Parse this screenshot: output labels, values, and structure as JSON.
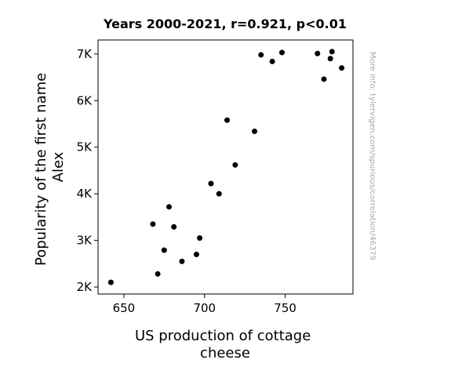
{
  "chart_data": {
    "type": "scatter",
    "title": "Years 2000-2021, r=0.921, p<0.01",
    "xlabel": [
      "US production of cottage",
      "cheese"
    ],
    "ylabel": [
      "Popularity of the first name",
      "Alex"
    ],
    "xlim": [
      634,
      792
    ],
    "ylim": [
      1850,
      7300
    ],
    "xticks": [
      650,
      700,
      750
    ],
    "xtick_labels": [
      "650",
      "700",
      "750"
    ],
    "yticks": [
      2000,
      3000,
      4000,
      5000,
      6000,
      7000
    ],
    "ytick_labels": [
      "2K",
      "3K",
      "4K",
      "5K",
      "6K",
      "7K"
    ],
    "grid": false,
    "marker_color": "#000000",
    "watermark": "More info: tylervigen.com/spurious/correlation/46379",
    "points": [
      {
        "x": 642,
        "y": 2100
      },
      {
        "x": 668,
        "y": 3350
      },
      {
        "x": 671,
        "y": 2280
      },
      {
        "x": 675,
        "y": 2790
      },
      {
        "x": 678,
        "y": 3720
      },
      {
        "x": 681,
        "y": 3290
      },
      {
        "x": 686,
        "y": 2550
      },
      {
        "x": 695,
        "y": 2700
      },
      {
        "x": 697,
        "y": 3050
      },
      {
        "x": 704,
        "y": 4220
      },
      {
        "x": 709,
        "y": 4000
      },
      {
        "x": 714,
        "y": 5580
      },
      {
        "x": 719,
        "y": 4620
      },
      {
        "x": 731,
        "y": 5340
      },
      {
        "x": 735,
        "y": 6980
      },
      {
        "x": 742,
        "y": 6840
      },
      {
        "x": 748,
        "y": 7030
      },
      {
        "x": 770,
        "y": 7010
      },
      {
        "x": 774,
        "y": 6460
      },
      {
        "x": 778,
        "y": 6900
      },
      {
        "x": 779,
        "y": 7050
      },
      {
        "x": 785,
        "y": 6700
      }
    ]
  }
}
